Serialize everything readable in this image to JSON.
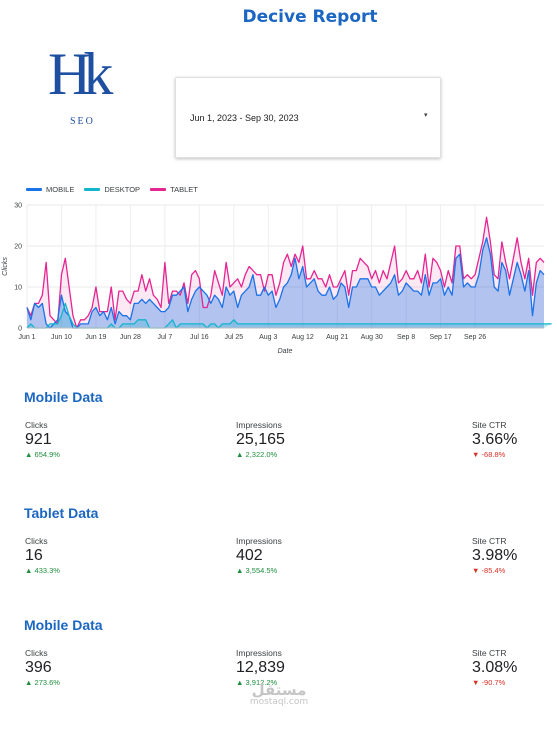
{
  "report": {
    "title": "Decive Report"
  },
  "logo": {
    "mark": "Hk",
    "sub": "SEO"
  },
  "date_range": {
    "value": "Jun 1, 2023 - Sep 30, 2023",
    "caret": "▾"
  },
  "colors": {
    "mobile": "#1a73e8",
    "desktop": "#12b5cb",
    "tablet": "#e52592",
    "title": "#1a66c2"
  },
  "chart_data": {
    "type": "area",
    "xlabel": "Date",
    "ylabel": "Clicks",
    "ylim": [
      0,
      30
    ],
    "yticks": [
      0,
      10,
      20,
      30
    ],
    "grid": true,
    "legend_position": "top-left",
    "x_tick_labels": [
      "Jun 1",
      "Jun 10",
      "Jun 19",
      "Jun 28",
      "Jul 7",
      "Jul 16",
      "Jul 25",
      "Aug 3",
      "Aug 12",
      "Aug 21",
      "Aug 30",
      "Sep 8",
      "Sep 17",
      "Sep 26"
    ],
    "x_dates_start": "Jun 1",
    "series": [
      {
        "name": "MOBILE",
        "values": [
          5,
          2,
          6,
          5,
          6,
          1,
          0,
          1,
          2,
          8,
          4,
          3,
          0,
          0,
          1,
          1,
          1,
          4,
          5,
          3,
          4,
          2,
          5,
          1,
          4,
          3,
          3,
          2,
          6,
          6,
          7,
          6,
          7,
          6,
          5,
          4,
          4,
          5,
          8,
          8,
          9,
          10,
          4,
          7,
          9,
          10,
          9,
          8,
          6,
          8,
          7,
          5,
          10,
          8,
          9,
          5,
          8,
          9,
          10,
          13,
          8,
          8,
          10,
          8,
          9,
          5,
          7,
          10,
          11,
          13,
          17,
          12,
          15,
          10,
          11,
          12,
          9,
          8,
          8,
          10,
          7,
          8,
          11,
          10,
          5,
          10,
          10,
          12,
          12,
          12,
          10,
          10,
          8,
          9,
          10,
          11,
          13,
          8,
          9,
          11,
          10,
          9,
          9,
          8,
          13,
          8,
          11,
          11,
          12,
          8,
          10,
          8,
          17,
          18,
          10,
          11,
          10,
          10,
          13,
          19,
          22,
          18,
          10,
          9,
          16,
          14,
          8,
          12,
          16,
          13,
          9,
          14,
          3,
          11,
          14,
          13
        ]
      },
      {
        "name": "DESKTOP",
        "values": [
          0,
          1,
          0,
          0,
          0,
          0,
          1,
          1,
          1,
          3,
          6,
          3,
          1,
          0,
          0,
          0,
          0,
          0,
          0,
          0,
          0,
          0,
          1,
          0,
          0,
          1,
          1,
          1,
          1,
          2,
          2,
          2,
          0,
          0,
          0,
          0,
          0,
          1,
          2,
          0,
          1,
          1,
          1,
          1,
          1,
          1,
          1,
          0,
          1,
          1,
          0,
          1,
          1,
          1,
          2,
          1,
          1,
          1,
          1,
          1,
          1,
          1,
          1,
          1,
          1,
          1,
          1,
          1,
          1,
          1,
          1,
          1,
          1,
          1,
          1,
          1,
          1,
          1,
          1,
          1,
          1,
          1,
          1,
          1,
          1,
          1,
          1,
          1,
          1,
          1,
          1,
          1,
          1,
          1,
          1,
          1,
          1,
          1,
          1,
          1,
          1,
          1,
          1,
          1,
          1,
          1,
          1,
          1,
          1,
          1,
          1,
          1,
          1,
          1,
          1,
          1,
          1,
          1,
          1,
          1,
          1,
          1,
          1,
          1,
          1,
          1,
          1,
          1,
          1,
          1,
          1,
          1,
          1,
          1,
          1,
          1,
          1,
          1
        ]
      },
      {
        "name": "TABLET",
        "values": [
          5,
          3,
          6,
          6,
          8,
          16,
          3,
          2,
          1,
          13,
          17,
          10,
          3,
          0,
          2,
          2,
          3,
          5,
          10,
          4,
          4,
          4,
          10,
          2,
          9,
          9,
          7,
          6,
          9,
          9,
          13,
          9,
          12,
          8,
          7,
          5,
          16,
          6,
          9,
          9,
          8,
          11,
          6,
          13,
          14,
          12,
          5,
          5,
          8,
          14,
          11,
          8,
          16,
          10,
          11,
          12,
          10,
          13,
          15,
          14,
          13,
          13,
          9,
          13,
          13,
          8,
          11,
          16,
          18,
          15,
          18,
          16,
          20,
          12,
          12,
          14,
          12,
          12,
          10,
          13,
          10,
          10,
          12,
          14,
          8,
          14,
          14,
          17,
          16,
          15,
          12,
          14,
          11,
          14,
          12,
          16,
          20,
          11,
          12,
          14,
          12,
          12,
          14,
          11,
          18,
          10,
          17,
          16,
          14,
          10,
          14,
          11,
          20,
          20,
          12,
          13,
          12,
          13,
          17,
          21,
          27,
          21,
          13,
          12,
          21,
          16,
          12,
          17,
          22,
          16,
          12,
          17,
          8,
          16,
          17,
          16
        ]
      }
    ]
  },
  "sections": [
    {
      "title": "Mobile Data",
      "metrics": [
        {
          "label": "Clicks",
          "value": "921",
          "delta": "654.9%",
          "direction": "up"
        },
        {
          "label": "Impressions",
          "value": "25,165",
          "delta": "2,322.0%",
          "direction": "up"
        },
        {
          "label": "Site CTR",
          "value": "3.66%",
          "delta": "-68.8%",
          "direction": "down"
        }
      ]
    },
    {
      "title": "Tablet Data",
      "metrics": [
        {
          "label": "Clicks",
          "value": "16",
          "delta": "433.3%",
          "direction": "up"
        },
        {
          "label": "Impressions",
          "value": "402",
          "delta": "3,554.5%",
          "direction": "up"
        },
        {
          "label": "Site CTR",
          "value": "3.98%",
          "delta": "-85.4%",
          "direction": "down"
        }
      ]
    },
    {
      "title": "Mobile Data",
      "metrics": [
        {
          "label": "Clicks",
          "value": "396",
          "delta": "273.6%",
          "direction": "up"
        },
        {
          "label": "Impressions",
          "value": "12,839",
          "delta": "3,912.2%",
          "direction": "up"
        },
        {
          "label": "Site CTR",
          "value": "3.08%",
          "delta": "-90.7%",
          "direction": "down"
        }
      ]
    }
  ],
  "delta_icons": {
    "up": "▲",
    "down": "▼"
  },
  "watermark": {
    "logo": "مستقل",
    "sub": "mostaql.com"
  }
}
